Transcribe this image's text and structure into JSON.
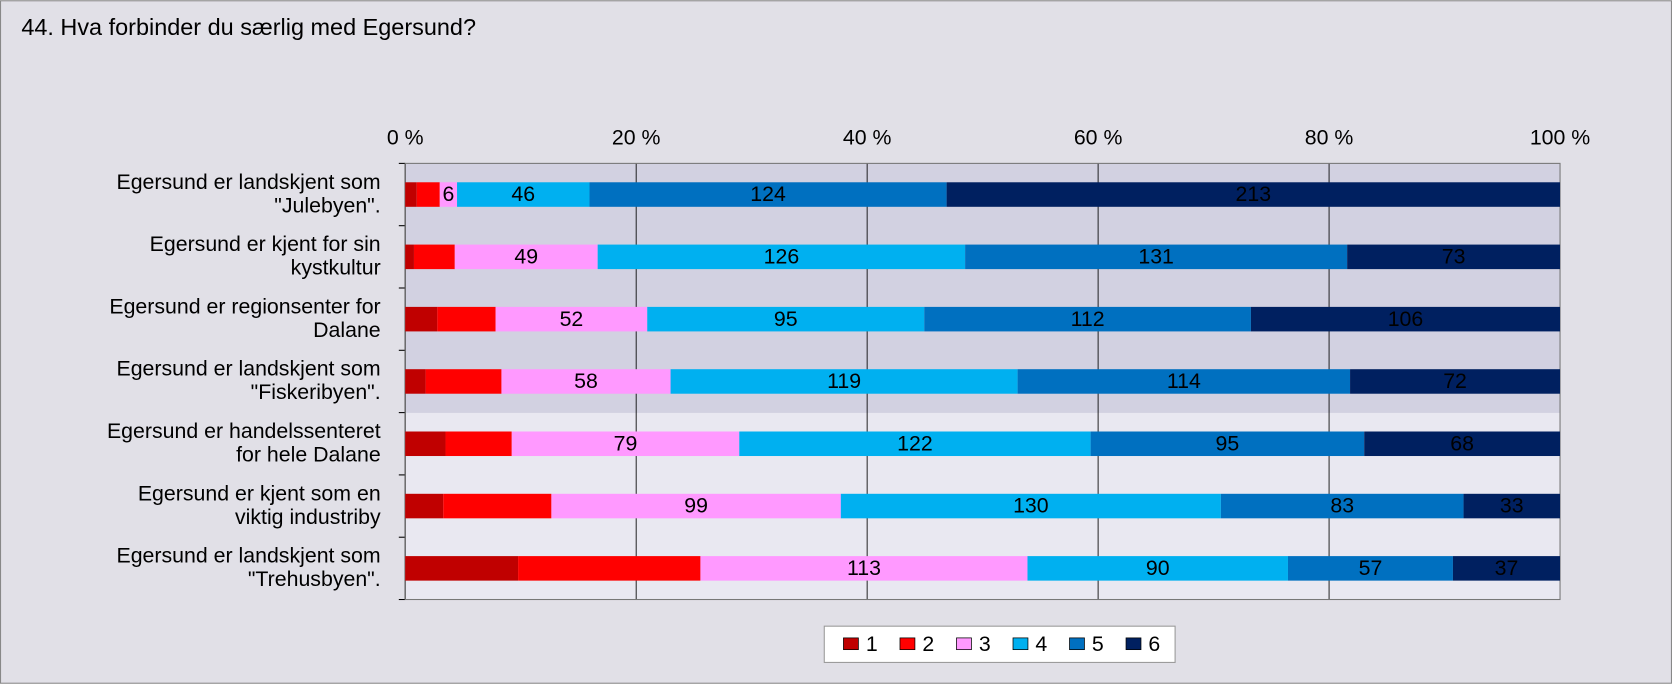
{
  "chart_data": {
    "type": "stacked_bar_100",
    "orientation": "horizontal",
    "title": "44. Hva forbinder du særlig med Egersund?",
    "categories": [
      [
        "Egersund er landskjent som",
        "\"Julebyen\"."
      ],
      [
        "Egersund er kjent for sin",
        "kystkultur"
      ],
      [
        "Egersund er regionsenter for",
        "Dalane"
      ],
      [
        "Egersund er landskjent som",
        "\"Fiskeribyen\"."
      ],
      [
        "Egersund er handelssenteret",
        "for hele Dalane"
      ],
      [
        "Egersund er kjent som en",
        "viktig industriby"
      ],
      [
        "Egersund er landskjent som",
        "\"Trehusbyen\"."
      ]
    ],
    "series": [
      {
        "name": "1",
        "color": "#c00000",
        "data_labels": false,
        "values": [
          4,
          3,
          11,
          7,
          14,
          13,
          39
        ]
      },
      {
        "name": "2",
        "color": "#ff0000",
        "data_labels": false,
        "values": [
          8,
          14,
          20,
          26,
          23,
          37,
          63
        ]
      },
      {
        "name": "3",
        "color": "#ff99ff",
        "data_labels": true,
        "values": [
          6,
          49,
          52,
          58,
          79,
          99,
          113
        ]
      },
      {
        "name": "4",
        "color": "#00b0f0",
        "data_labels": true,
        "values": [
          46,
          126,
          95,
          119,
          122,
          130,
          90
        ]
      },
      {
        "name": "5",
        "color": "#0070c0",
        "data_labels": true,
        "values": [
          124,
          131,
          112,
          114,
          95,
          83,
          57
        ]
      },
      {
        "name": "6",
        "color": "#002060",
        "data_labels": true,
        "values": [
          213,
          73,
          106,
          72,
          68,
          33,
          37
        ]
      }
    ],
    "xlim": [
      0,
      100
    ],
    "xticks": [
      {
        "value": 0,
        "label": "0 %"
      },
      {
        "value": 20,
        "label": "20 %"
      },
      {
        "value": 40,
        "label": "40 %"
      },
      {
        "value": 60,
        "label": "60 %"
      },
      {
        "value": 80,
        "label": "80 %"
      },
      {
        "value": 100,
        "label": "100 %"
      }
    ],
    "grid": true,
    "legend": "bottom"
  }
}
